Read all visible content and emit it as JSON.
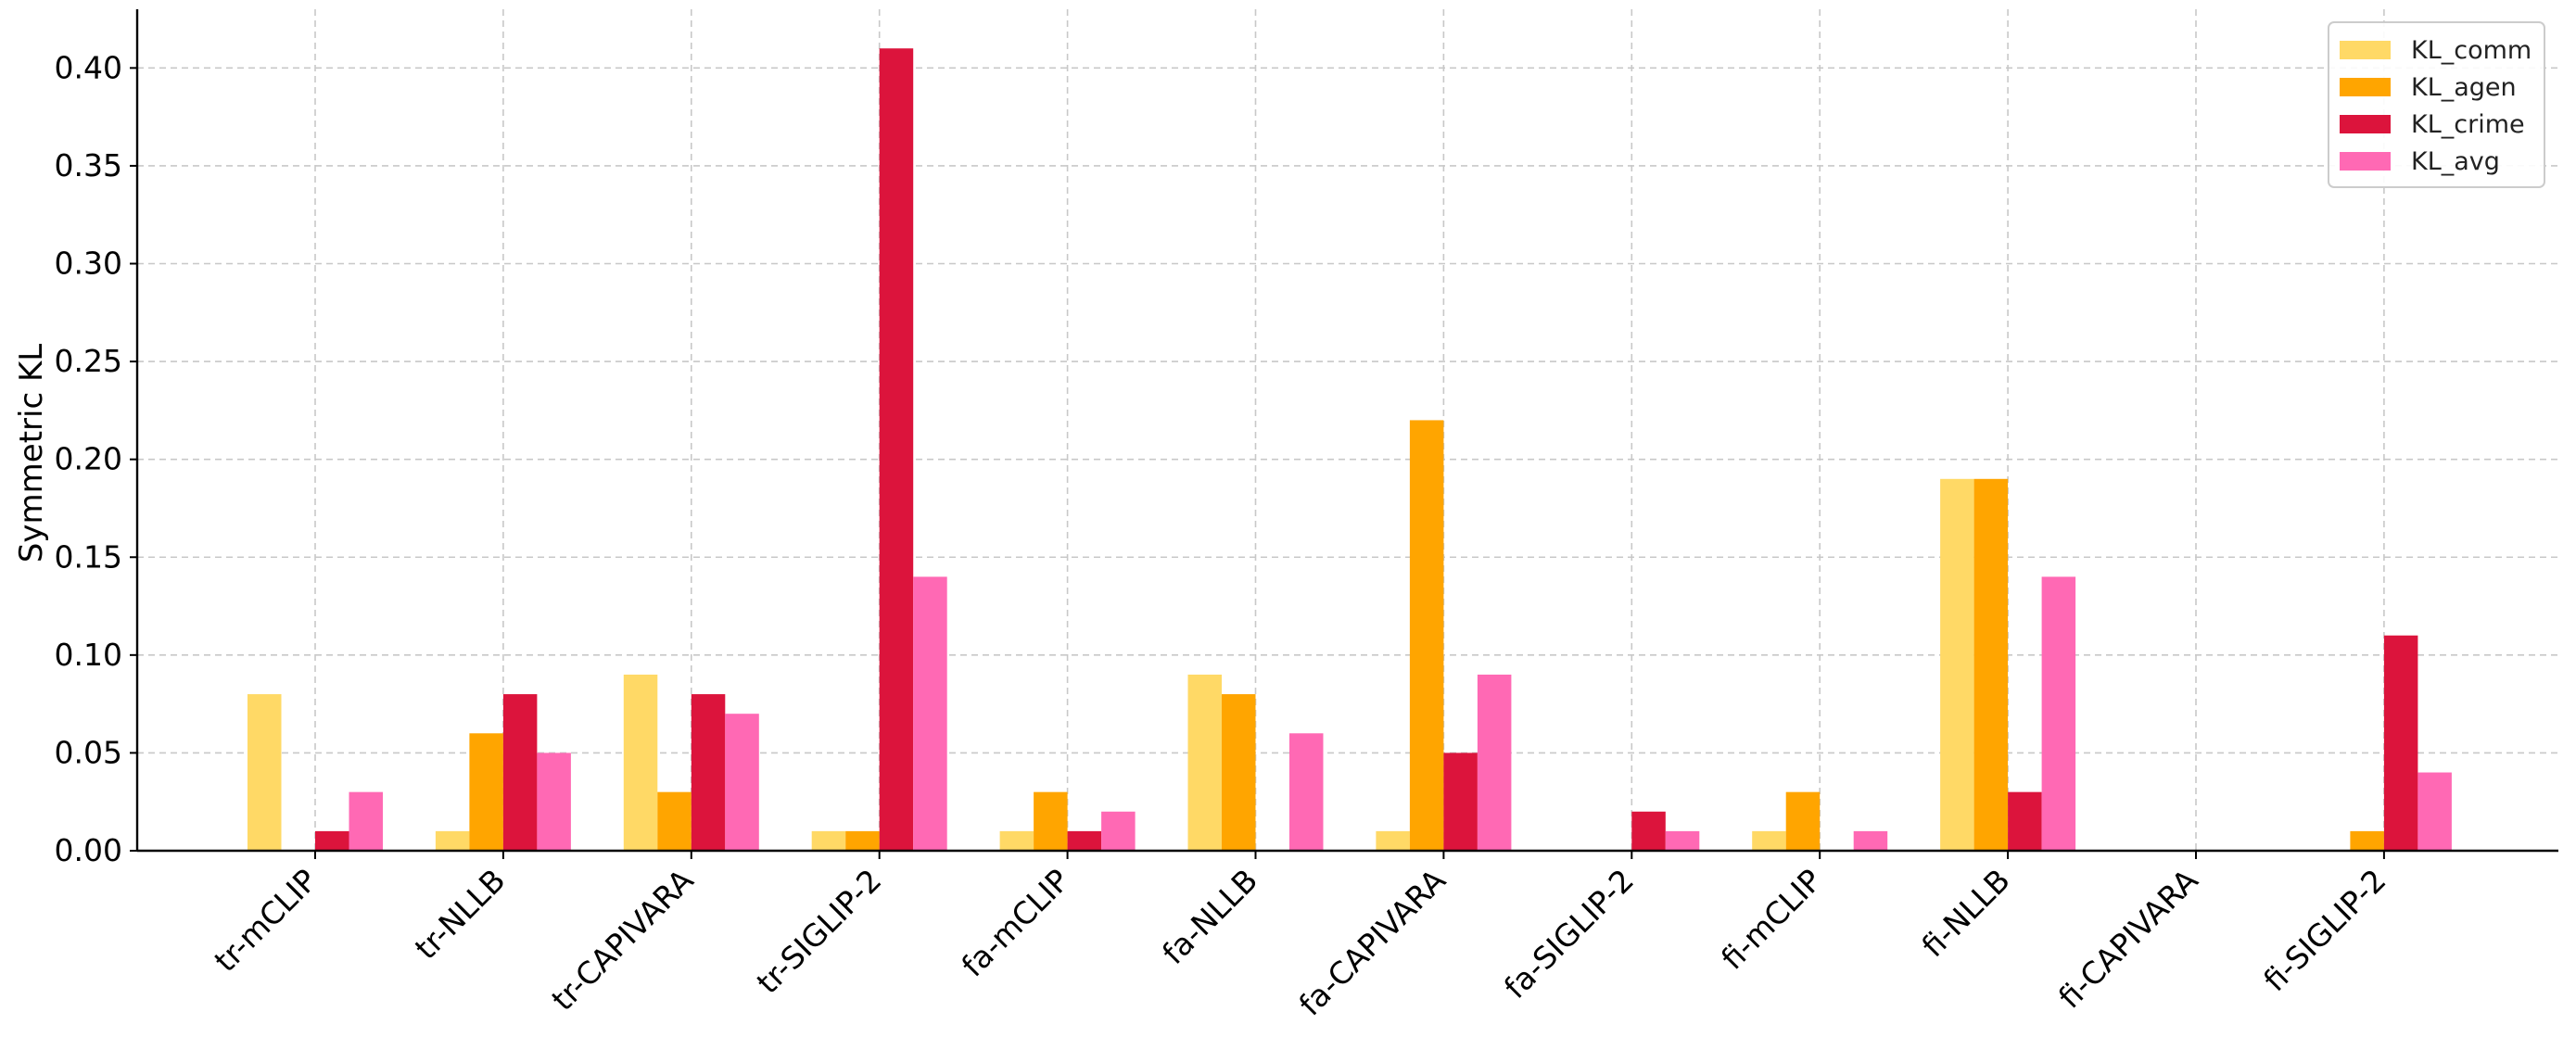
{
  "chart_data": {
    "type": "bar",
    "title": "",
    "xlabel": "",
    "ylabel": "Symmetric KL",
    "ylim": [
      0,
      0.43
    ],
    "yticks": [
      "0.00",
      "0.05",
      "0.10",
      "0.15",
      "0.20",
      "0.25",
      "0.30",
      "0.35",
      "0.40"
    ],
    "grid": true,
    "legend_position": "top-right",
    "categories": [
      "tr-mCLIP",
      "tr-NLLB",
      "tr-CAPIVARA",
      "tr-SIGLIP-2",
      "fa-mCLIP",
      "fa-NLLB",
      "fa-CAPIVARA",
      "fa-SIGLIP-2",
      "fi-mCLIP",
      "fi-NLLB",
      "fi-CAPIVARA",
      "fi-SIGLIP-2"
    ],
    "series": [
      {
        "name": "KL_comm",
        "color": "#FFD966",
        "values": [
          0.08,
          0.01,
          0.09,
          0.01,
          0.01,
          0.09,
          0.01,
          0.0,
          0.01,
          0.19,
          0.0,
          0.0
        ]
      },
      {
        "name": "KL_agen",
        "color": "#FFA500",
        "values": [
          0.0,
          0.06,
          0.03,
          0.01,
          0.03,
          0.08,
          0.22,
          0.0,
          0.03,
          0.19,
          0.0,
          0.01
        ]
      },
      {
        "name": "KL_crime",
        "color": "#DC143C",
        "values": [
          0.01,
          0.08,
          0.08,
          0.41,
          0.01,
          0.0,
          0.05,
          0.02,
          0.0,
          0.03,
          0.0,
          0.11
        ]
      },
      {
        "name": "KL_avg",
        "color": "#FF69B4",
        "values": [
          0.03,
          0.05,
          0.07,
          0.14,
          0.02,
          0.06,
          0.09,
          0.01,
          0.01,
          0.14,
          0.0,
          0.04
        ]
      }
    ]
  }
}
